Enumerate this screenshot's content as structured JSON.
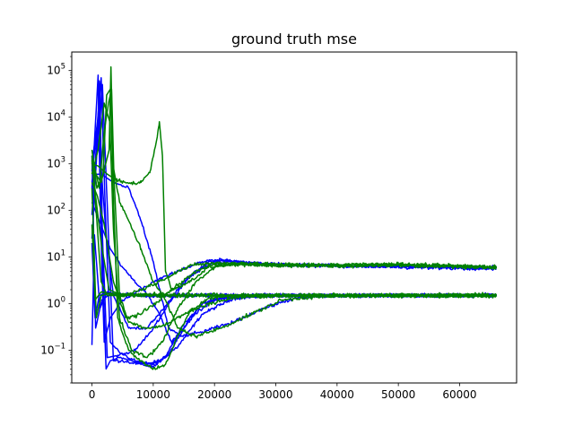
{
  "chart_data": {
    "type": "line",
    "title": "ground truth mse",
    "xlabel": "",
    "ylabel": "",
    "xscale": "linear",
    "yscale": "log",
    "xlim": [
      -3300,
      69300
    ],
    "ylim": [
      0.02,
      250000
    ],
    "grid": false,
    "legend": "none",
    "x_ticks": [
      {
        "value": 0,
        "label": "0"
      },
      {
        "value": 10000,
        "label": "10000"
      },
      {
        "value": 20000,
        "label": "20000"
      },
      {
        "value": 30000,
        "label": "30000"
      },
      {
        "value": 40000,
        "label": "40000"
      },
      {
        "value": 50000,
        "label": "50000"
      },
      {
        "value": 60000,
        "label": "60000"
      }
    ],
    "y_ticks": [
      {
        "value": 0.1,
        "base": "10",
        "exp": "−1"
      },
      {
        "value": 1,
        "base": "10",
        "exp": "0"
      },
      {
        "value": 10,
        "base": "10",
        "exp": "1"
      },
      {
        "value": 100,
        "base": "10",
        "exp": "2"
      },
      {
        "value": 1000,
        "base": "10",
        "exp": "3"
      },
      {
        "value": 10000,
        "base": "10",
        "exp": "4"
      },
      {
        "value": 100000,
        "base": "10",
        "exp": "5"
      }
    ],
    "colors": {
      "blue": "#0000ff",
      "green": "#008000"
    },
    "series": [
      {
        "color": "#0000ff",
        "noise": 0.05,
        "points": [
          [
            0,
            25
          ],
          [
            800,
            1800
          ],
          [
            1200,
            60000
          ],
          [
            1500,
            40
          ],
          [
            2300,
            0.04
          ],
          [
            3000,
            0.06
          ],
          [
            4500,
            0.07
          ],
          [
            6500,
            0.06
          ],
          [
            9000,
            0.05
          ],
          [
            11000,
            0.06
          ],
          [
            14000,
            0.12
          ],
          [
            18000,
            0.6
          ],
          [
            23000,
            1.3
          ],
          [
            30000,
            1.5
          ],
          [
            40000,
            1.5
          ],
          [
            66000,
            1.5
          ]
        ]
      },
      {
        "color": "#0000ff",
        "noise": 0.05,
        "points": [
          [
            0,
            400
          ],
          [
            1000,
            2500
          ],
          [
            1700,
            50000
          ],
          [
            2600,
            60
          ],
          [
            3500,
            0.06
          ],
          [
            5000,
            0.06
          ],
          [
            8000,
            0.05
          ],
          [
            10000,
            0.045
          ],
          [
            12000,
            0.07
          ],
          [
            14500,
            0.3
          ],
          [
            18000,
            1.0
          ],
          [
            22000,
            1.4
          ],
          [
            30000,
            1.5
          ],
          [
            66000,
            1.5
          ]
        ]
      },
      {
        "color": "#0000ff",
        "noise": 0.05,
        "points": [
          [
            0,
            1000
          ],
          [
            900,
            8000
          ],
          [
            1500,
            70000
          ],
          [
            2100,
            200
          ],
          [
            3000,
            0.15
          ],
          [
            4500,
            0.09
          ],
          [
            7000,
            0.06
          ],
          [
            10000,
            0.05
          ],
          [
            12500,
            0.08
          ],
          [
            16000,
            0.5
          ],
          [
            20000,
            1.2
          ],
          [
            26000,
            1.5
          ],
          [
            66000,
            1.55
          ]
        ]
      },
      {
        "color": "#0000ff",
        "noise": 0.05,
        "points": [
          [
            0,
            0.13
          ],
          [
            400,
            30
          ],
          [
            1300,
            0.8
          ],
          [
            2500,
            1.8
          ],
          [
            4000,
            1.6
          ],
          [
            10000,
            1.5
          ],
          [
            20000,
            1.55
          ],
          [
            40000,
            1.5
          ],
          [
            66000,
            1.5
          ]
        ]
      },
      {
        "color": "#0000ff",
        "noise": 0.05,
        "points": [
          [
            0,
            1500
          ],
          [
            600,
            0.3
          ],
          [
            1600,
            1.2
          ],
          [
            3000,
            1.6
          ],
          [
            8000,
            1.5
          ],
          [
            15000,
            1.5
          ],
          [
            30000,
            1.5
          ],
          [
            66000,
            1.5
          ]
        ]
      },
      {
        "color": "#0000ff",
        "noise": 0.05,
        "points": [
          [
            0,
            20
          ],
          [
            500,
            0.5
          ],
          [
            1200,
            1.5
          ],
          [
            2200,
            1.7
          ],
          [
            6000,
            1.5
          ],
          [
            25000,
            1.5
          ],
          [
            66000,
            1.5
          ]
        ]
      },
      {
        "color": "#0000ff",
        "noise": 0.05,
        "points": [
          [
            0,
            600
          ],
          [
            1500,
            600
          ],
          [
            3500,
            400
          ],
          [
            6000,
            300
          ],
          [
            8000,
            60
          ],
          [
            10000,
            8
          ],
          [
            12500,
            0.3
          ],
          [
            14500,
            0.2
          ],
          [
            18000,
            0.25
          ],
          [
            23000,
            0.4
          ],
          [
            28000,
            0.8
          ],
          [
            33000,
            1.3
          ],
          [
            40000,
            1.5
          ],
          [
            66000,
            1.5
          ]
        ]
      },
      {
        "color": "#0000ff",
        "noise": 0.05,
        "points": [
          [
            0,
            150
          ],
          [
            1200,
            60
          ],
          [
            3000,
            15
          ],
          [
            5000,
            6
          ],
          [
            7000,
            3
          ],
          [
            9000,
            1.6
          ],
          [
            11000,
            0.6
          ],
          [
            13000,
            0.15
          ],
          [
            15000,
            0.3
          ],
          [
            18000,
            1.0
          ],
          [
            22000,
            1.5
          ],
          [
            30000,
            1.5
          ],
          [
            66000,
            1.5
          ]
        ]
      },
      {
        "color": "#0000ff",
        "noise": 0.05,
        "points": [
          [
            0,
            300
          ],
          [
            1000,
            80000
          ],
          [
            1400,
            60
          ],
          [
            2000,
            0.15
          ],
          [
            3000,
            0.5
          ],
          [
            5000,
            1.2
          ],
          [
            8000,
            2.0
          ],
          [
            11000,
            3.5
          ],
          [
            14000,
            5
          ],
          [
            18000,
            8
          ],
          [
            21000,
            9
          ],
          [
            25000,
            7.5
          ],
          [
            30000,
            7
          ],
          [
            40000,
            6.5
          ],
          [
            50000,
            6.3
          ],
          [
            55000,
            6.6
          ],
          [
            60000,
            6
          ],
          [
            66000,
            6
          ]
        ]
      },
      {
        "color": "#0000ff",
        "noise": 0.05,
        "points": [
          [
            0,
            80
          ],
          [
            1300,
            40000
          ],
          [
            1700,
            30
          ],
          [
            2500,
            0.07
          ],
          [
            4500,
            0.08
          ],
          [
            7000,
            0.1
          ],
          [
            10000,
            0.3
          ],
          [
            13000,
            1.2
          ],
          [
            16000,
            4
          ],
          [
            19000,
            8
          ],
          [
            22000,
            8.5
          ],
          [
            27000,
            7
          ],
          [
            35000,
            6.5
          ],
          [
            45000,
            6.5
          ],
          [
            66000,
            6
          ]
        ]
      },
      {
        "color": "#0000ff",
        "noise": 0.05,
        "points": [
          [
            0,
            700
          ],
          [
            1000,
            7000
          ],
          [
            1500,
            800
          ],
          [
            2300,
            30
          ],
          [
            3500,
            1.5
          ],
          [
            6000,
            0.3
          ],
          [
            9000,
            0.3
          ],
          [
            12000,
            0.9
          ],
          [
            15000,
            3
          ],
          [
            19000,
            7
          ],
          [
            23000,
            8
          ],
          [
            30000,
            7
          ],
          [
            40000,
            6.5
          ],
          [
            66000,
            5.5
          ]
        ]
      },
      {
        "color": "#008000",
        "noise": 0.06,
        "points": [
          [
            0,
            1000
          ],
          [
            1000,
            900
          ],
          [
            2500,
            600
          ],
          [
            4000,
            450
          ],
          [
            6000,
            380
          ],
          [
            8000,
            400
          ],
          [
            9500,
            700
          ],
          [
            10500,
            3000
          ],
          [
            11000,
            8000
          ],
          [
            11500,
            1500
          ],
          [
            12000,
            5
          ],
          [
            13000,
            2
          ],
          [
            16000,
            3
          ],
          [
            19000,
            6
          ],
          [
            22000,
            7
          ],
          [
            30000,
            7
          ],
          [
            40000,
            6.5
          ],
          [
            50000,
            6.8
          ],
          [
            66000,
            6
          ]
        ]
      },
      {
        "color": "#008000",
        "noise": 0.06,
        "points": [
          [
            0,
            800
          ],
          [
            1500,
            400
          ],
          [
            2800,
            2000
          ],
          [
            3100,
            120000
          ],
          [
            3400,
            1000
          ],
          [
            4500,
            150
          ],
          [
            6000,
            60
          ],
          [
            8000,
            15
          ],
          [
            10000,
            3
          ],
          [
            12000,
            1.2
          ],
          [
            14000,
            0.3
          ],
          [
            17000,
            0.2
          ],
          [
            21000,
            0.3
          ],
          [
            26000,
            0.6
          ],
          [
            31000,
            1.2
          ],
          [
            36000,
            1.4
          ],
          [
            45000,
            1.5
          ],
          [
            66000,
            1.5
          ]
        ]
      },
      {
        "color": "#008000",
        "noise": 0.06,
        "points": [
          [
            0,
            1500
          ],
          [
            1200,
            300
          ],
          [
            2000,
            5000
          ],
          [
            2700,
            20000
          ],
          [
            3200,
            40000
          ],
          [
            3600,
            500
          ],
          [
            4500,
            1.5
          ],
          [
            6000,
            0.4
          ],
          [
            9000,
            0.3
          ],
          [
            12000,
            0.35
          ],
          [
            15000,
            0.6
          ],
          [
            19000,
            1.0
          ],
          [
            24000,
            1.4
          ],
          [
            30000,
            1.5
          ],
          [
            66000,
            1.5
          ]
        ]
      },
      {
        "color": "#008000",
        "noise": 0.06,
        "points": [
          [
            0,
            2000
          ],
          [
            800,
            300
          ],
          [
            1800,
            600
          ],
          [
            2400,
            30000
          ],
          [
            3000,
            40000
          ],
          [
            3500,
            200
          ],
          [
            4200,
            0.5
          ],
          [
            6000,
            0.1
          ],
          [
            8000,
            0.06
          ],
          [
            10000,
            0.04
          ],
          [
            12000,
            0.05
          ],
          [
            14000,
            0.2
          ],
          [
            16000,
            0.7
          ],
          [
            19000,
            1.3
          ],
          [
            24000,
            1.5
          ],
          [
            66000,
            1.5
          ]
        ]
      },
      {
        "color": "#008000",
        "noise": 0.06,
        "points": [
          [
            0,
            300
          ],
          [
            700,
            0.5
          ],
          [
            1500,
            1.5
          ],
          [
            3000,
            1.7
          ],
          [
            6000,
            1.5
          ],
          [
            15000,
            1.5
          ],
          [
            30000,
            1.5
          ],
          [
            66000,
            1.5
          ]
        ]
      },
      {
        "color": "#008000",
        "noise": 0.06,
        "points": [
          [
            0,
            50
          ],
          [
            500,
            1.2
          ],
          [
            1500,
            1.8
          ],
          [
            4000,
            1.5
          ],
          [
            10000,
            1.6
          ],
          [
            25000,
            1.5
          ],
          [
            66000,
            1.55
          ]
        ]
      },
      {
        "color": "#008000",
        "noise": 0.06,
        "points": [
          [
            0,
            1200
          ],
          [
            800,
            60
          ],
          [
            1500,
            3
          ],
          [
            2500,
            1.5
          ],
          [
            5000,
            1.5
          ],
          [
            20000,
            1.5
          ],
          [
            66000,
            1.5
          ]
        ]
      },
      {
        "color": "#008000",
        "noise": 0.06,
        "points": [
          [
            0,
            600
          ],
          [
            1000,
            2000
          ],
          [
            2000,
            20000
          ],
          [
            2900,
            8000
          ],
          [
            3500,
            40
          ],
          [
            4500,
            0.5
          ],
          [
            6500,
            0.1
          ],
          [
            9000,
            0.07
          ],
          [
            11500,
            0.15
          ],
          [
            14000,
            0.8
          ],
          [
            17000,
            3
          ],
          [
            20000,
            6
          ],
          [
            24000,
            7.5
          ],
          [
            30000,
            7
          ],
          [
            40000,
            6.5
          ],
          [
            50000,
            7
          ],
          [
            55000,
            6.5
          ],
          [
            66000,
            6
          ]
        ]
      },
      {
        "color": "#008000",
        "noise": 0.06,
        "points": [
          [
            0,
            400
          ],
          [
            900,
            200
          ],
          [
            2000,
            50
          ],
          [
            3500,
            3
          ],
          [
            5500,
            0.5
          ],
          [
            8000,
            0.6
          ],
          [
            11000,
            1.2
          ],
          [
            14000,
            2.5
          ],
          [
            17000,
            5
          ],
          [
            20000,
            7
          ],
          [
            25000,
            7
          ],
          [
            35000,
            6.5
          ],
          [
            50000,
            7
          ],
          [
            60000,
            6.5
          ],
          [
            66000,
            6.2
          ]
        ]
      },
      {
        "color": "#008000",
        "noise": 0.06,
        "points": [
          [
            0,
            1500
          ],
          [
            600,
            200
          ],
          [
            1500,
            20
          ],
          [
            2800,
            2
          ],
          [
            5000,
            1.5
          ],
          [
            8000,
            2
          ],
          [
            11000,
            3
          ],
          [
            14000,
            5
          ],
          [
            17000,
            7
          ],
          [
            21000,
            7.5
          ],
          [
            30000,
            6.5
          ],
          [
            45000,
            7
          ],
          [
            66000,
            6
          ]
        ]
      }
    ]
  }
}
